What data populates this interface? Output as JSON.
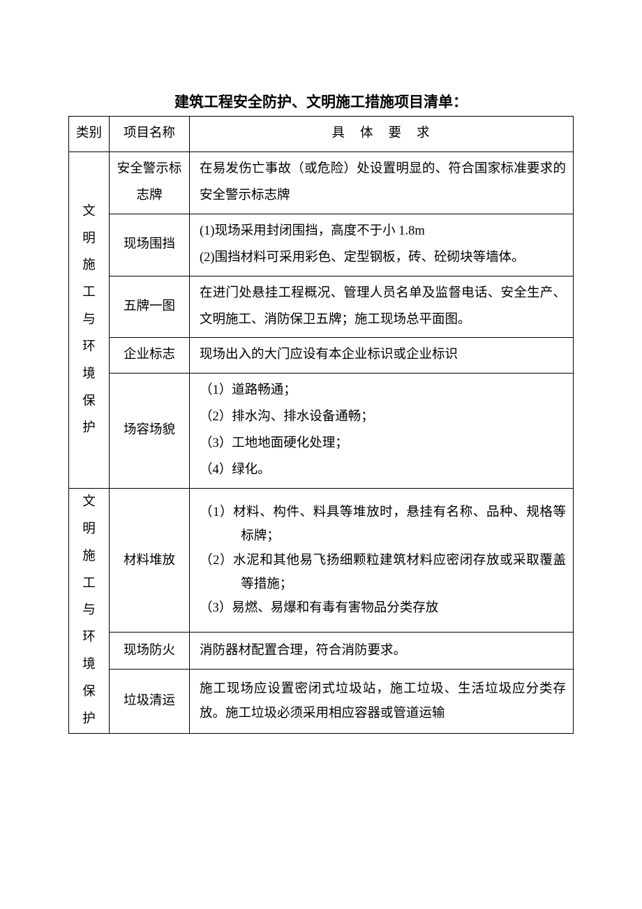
{
  "title": "建筑工程安全防护、文明施工措施项目清单：",
  "header": {
    "category": "类别",
    "name": "项目名称",
    "requirement": "具体要求"
  },
  "groups": [
    {
      "category": "文明施工与环境保护",
      "rows": [
        {
          "name": "安全警示标志牌",
          "req_lines": [
            {
              "cls": "plain",
              "text": "在易发伤亡事故（或危险）处设置明显的、符合国家标准要求的安全警示标志牌"
            }
          ]
        },
        {
          "name": "现场围挡",
          "req_lines": [
            {
              "cls": "indent-num",
              "text": "(1)现场采用封闭围挡，高度不于小 1.8m"
            },
            {
              "cls": "indent-num",
              "text": "(2)围挡材料可采用彩色、定型钢板，砖、砼砌块等墙体。"
            }
          ]
        },
        {
          "name": "五牌一图",
          "req_lines": [
            {
              "cls": "plain",
              "text": "在进门处悬挂工程概况、管理人员名单及监督电话、安全生产、文明施工、消防保卫五牌；施工现场总平面图。"
            }
          ]
        },
        {
          "name": "企业标志",
          "req_lines": [
            {
              "cls": "plain",
              "text": "现场出入的大门应设有本企业标识或企业标识"
            }
          ]
        },
        {
          "name": "场容场貌",
          "req_lines": [
            {
              "cls": "indent-cn",
              "text": "（1）道路畅通；"
            },
            {
              "cls": "indent-cn",
              "text": "（2）排水沟、排水设备通畅；"
            },
            {
              "cls": "indent-cn",
              "text": "（3）工地地面硬化处理；"
            },
            {
              "cls": "indent-cn",
              "text": "（4）绿化。"
            }
          ]
        }
      ]
    },
    {
      "category": "文明施工与环境保护",
      "rows": [
        {
          "name": "材料堆放",
          "req_lines": [
            {
              "cls": "indent-cn",
              "text": "（1）材料、构件、料具等堆放时，悬挂有名称、品种、规格等标牌；"
            },
            {
              "cls": "indent-cn",
              "text": "（2）水泥和其他易飞扬细颗粒建筑材料应密闭存放或采取覆盖等措施；"
            },
            {
              "cls": "indent-cn",
              "text": "（3）易燃、易爆和有毒有害物品分类存放"
            }
          ]
        },
        {
          "name": "现场防火",
          "req_lines": [
            {
              "cls": "plain",
              "text": "消防器材配置合理，符合消防要求。"
            }
          ]
        },
        {
          "name": "垃圾清运",
          "req_lines": [
            {
              "cls": "plain",
              "text": "施工现场应设置密闭式垃圾站，施工垃圾、生活垃圾应分类存放。施工垃圾必须采用相应容器或管道运输"
            }
          ]
        }
      ]
    }
  ]
}
